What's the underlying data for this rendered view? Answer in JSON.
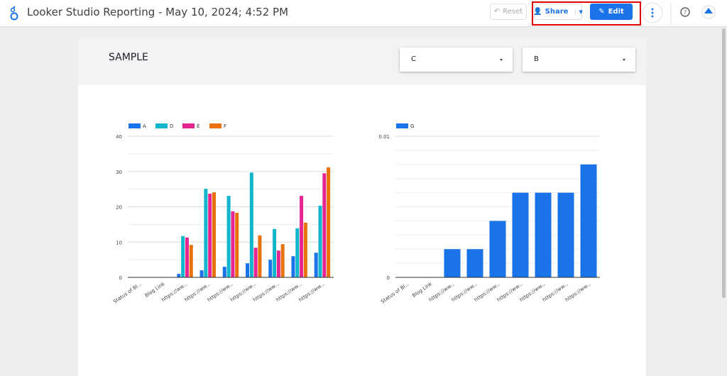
{
  "header": {
    "title": "Looker Studio Reporting - May 10, 2024; 4:52 PM",
    "reset": "Reset",
    "share": "Share",
    "edit": "Edit"
  },
  "report": {
    "title": "SAMPLE",
    "filters": [
      "C",
      "B"
    ]
  },
  "chart_data": [
    {
      "type": "bar",
      "categories": [
        "Status of Bl...",
        "Blog Link",
        "https://ww...",
        "https://ww...",
        "https://ww...",
        "https://ww...",
        "https://ww...",
        "https://ww...",
        "https://ww..."
      ],
      "series": [
        {
          "name": "A",
          "color": "#1a73e8",
          "values": [
            0,
            0,
            1,
            2,
            3,
            4,
            5,
            6,
            7
          ]
        },
        {
          "name": "D",
          "color": "#12b5cb",
          "values": [
            0,
            0,
            11.7,
            25.1,
            23.1,
            29.7,
            13.7,
            13.9,
            20.3
          ]
        },
        {
          "name": "E",
          "color": "#e52592",
          "values": [
            0,
            0,
            11.3,
            23.7,
            18.7,
            8.4,
            7.6,
            23.1,
            29.5
          ]
        },
        {
          "name": "F",
          "color": "#e8710a",
          "values": [
            0,
            0,
            9.2,
            24.1,
            18.3,
            11.9,
            9.4,
            15.5,
            31.2
          ]
        }
      ],
      "ylim": [
        0,
        40
      ],
      "yticks": [
        0,
        10,
        20,
        30,
        40
      ],
      "minor_yticks": [
        5,
        15,
        25,
        35
      ],
      "grid": true,
      "legend": "top-left"
    },
    {
      "type": "bar",
      "categories": [
        "Status of Bl...",
        "Blog Link",
        "https://ww...",
        "https://ww...",
        "https://ww...",
        "https://ww...",
        "https://ww...",
        "https://ww...",
        "https://ww..."
      ],
      "series": [
        {
          "name": "G",
          "color": "#1a73e8",
          "values": [
            0,
            0,
            0.002,
            0.002,
            0.004,
            0.006,
            0.006,
            0.006,
            0.008
          ]
        }
      ],
      "ylim": [
        0,
        0.01
      ],
      "yticks": [
        0,
        0.01
      ],
      "minor_yticks": [
        0.001,
        0.002,
        0.003,
        0.004,
        0.005,
        0.006,
        0.007,
        0.008,
        0.009
      ],
      "grid": true,
      "legend": "top-left"
    }
  ]
}
